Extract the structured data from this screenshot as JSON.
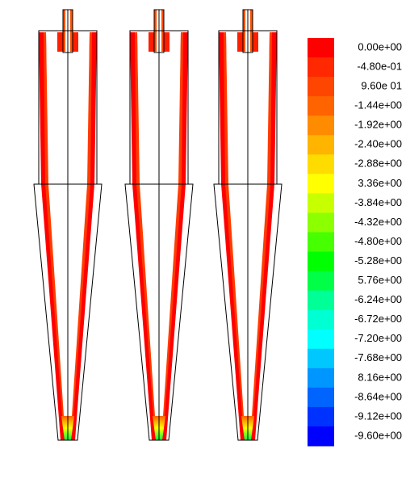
{
  "legend": {
    "labels": [
      "0.00e+00",
      "-4.80e-01",
      "9.60e 01",
      "-1.44e+00",
      "-1.92e+00",
      "-2.40e+00",
      "-2.88e+00",
      "3.36e+00",
      "-3.84e+00",
      "-4.32e+00",
      "-4.80e+00",
      "-5.28e+00",
      "5.76e+00",
      "-6.24e+00",
      "-6.72e+00",
      "-7.20e+00",
      "-7.68e+00",
      "8.16e+00",
      "-8.64e+00",
      "-9.12e+00",
      "-9.60e+00"
    ],
    "colors": [
      "#ff0000",
      "#ff2800",
      "#ff4600",
      "#ff6400",
      "#ff8c00",
      "#ffb400",
      "#ffdc00",
      "#ffff00",
      "#c8ff00",
      "#8cff00",
      "#46ff00",
      "#00ff00",
      "#00ff46",
      "#00ff96",
      "#00ffd2",
      "#00ffff",
      "#00c8ff",
      "#0096ff",
      "#0064ff",
      "#0032ff",
      "#0000ff"
    ]
  }
}
